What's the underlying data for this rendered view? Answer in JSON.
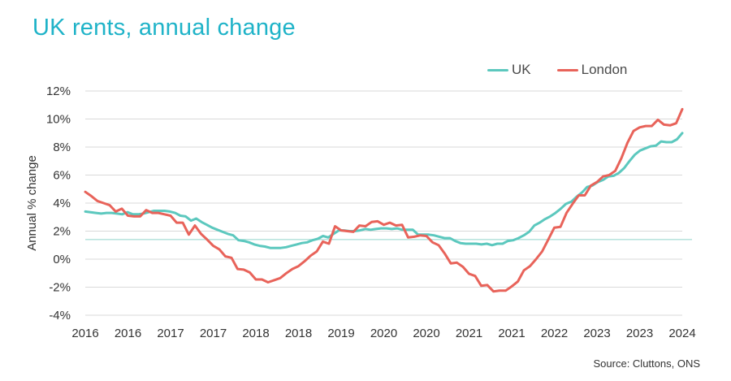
{
  "title": "UK rents, annual change",
  "source": "Source: Cluttons, ONS",
  "chart_data": {
    "type": "line",
    "ylabel": "Annual % change",
    "xlabel": "",
    "ylim": [
      -4,
      12
    ],
    "y_ticks": [
      "-4%",
      "-2%",
      "0%",
      "2%",
      "4%",
      "6%",
      "8%",
      "10%",
      "12%"
    ],
    "x_tick_labels": [
      "2016",
      "2016",
      "2017",
      "2017",
      "2018",
      "2018",
      "2019",
      "2020",
      "2020",
      "2021",
      "2021",
      "2022",
      "2023",
      "2023",
      "2024"
    ],
    "grid": "horizontal",
    "legend_position": "top-right",
    "reference_line": 1.4,
    "colors": {
      "UK": "#5cc8be",
      "London": "#e8635a",
      "reference": "#8fd3cb"
    },
    "series": [
      {
        "name": "UK",
        "color": "#5cc8be",
        "values": [
          3.4,
          3.35,
          3.3,
          3.25,
          3.3,
          3.3,
          3.25,
          3.2,
          3.35,
          3.2,
          3.2,
          3.25,
          3.35,
          3.45,
          3.45,
          3.45,
          3.4,
          3.3,
          3.1,
          3.05,
          2.75,
          2.9,
          2.65,
          2.45,
          2.25,
          2.1,
          1.95,
          1.8,
          1.7,
          1.35,
          1.3,
          1.2,
          1.05,
          0.95,
          0.9,
          0.8,
          0.8,
          0.8,
          0.85,
          0.95,
          1.05,
          1.15,
          1.2,
          1.35,
          1.45,
          1.65,
          1.55,
          1.8,
          2.05,
          2.05,
          2.0,
          2.0,
          2.05,
          2.15,
          2.1,
          2.15,
          2.2,
          2.2,
          2.15,
          2.2,
          2.1,
          2.1,
          2.1,
          1.75,
          1.75,
          1.75,
          1.7,
          1.6,
          1.5,
          1.5,
          1.3,
          1.15,
          1.1,
          1.1,
          1.1,
          1.05,
          1.1,
          1.0,
          1.1,
          1.1,
          1.3,
          1.35,
          1.5,
          1.7,
          1.95,
          2.4,
          2.6,
          2.85,
          3.05,
          3.3,
          3.6,
          3.95,
          4.1,
          4.45,
          4.75,
          5.15,
          5.25,
          5.5,
          5.65,
          5.9,
          5.95,
          6.15,
          6.5,
          7.0,
          7.45,
          7.75,
          7.9,
          8.05,
          8.1,
          8.4,
          8.35,
          8.35,
          8.55,
          9.0
        ]
      },
      {
        "name": "London",
        "color": "#e8635a",
        "values": [
          4.8,
          4.5,
          4.15,
          4.0,
          3.85,
          3.4,
          3.6,
          3.1,
          3.05,
          3.05,
          3.5,
          3.3,
          3.3,
          3.2,
          3.1,
          2.6,
          2.6,
          1.75,
          2.4,
          1.8,
          1.4,
          0.95,
          0.7,
          0.2,
          0.1,
          -0.7,
          -0.75,
          -0.95,
          -1.45,
          -1.45,
          -1.65,
          -1.5,
          -1.35,
          -1.0,
          -0.7,
          -0.5,
          -0.15,
          0.25,
          0.55,
          1.25,
          1.1,
          2.35,
          2.05,
          2.0,
          1.95,
          2.4,
          2.35,
          2.65,
          2.7,
          2.45,
          2.6,
          2.4,
          2.45,
          1.55,
          1.6,
          1.7,
          1.65,
          1.2,
          1.0,
          0.4,
          -0.3,
          -0.25,
          -0.55,
          -1.05,
          -1.2,
          -1.9,
          -1.85,
          -2.3,
          -2.25,
          -2.25,
          -1.95,
          -1.6,
          -0.8,
          -0.5,
          0.0,
          0.55,
          1.4,
          2.25,
          2.3,
          3.3,
          3.95,
          4.55,
          4.55,
          5.25,
          5.5,
          5.9,
          6.0,
          6.3,
          7.2,
          8.3,
          9.15,
          9.4,
          9.5,
          9.5,
          9.95,
          9.6,
          9.55,
          9.7,
          10.7
        ]
      }
    ]
  }
}
